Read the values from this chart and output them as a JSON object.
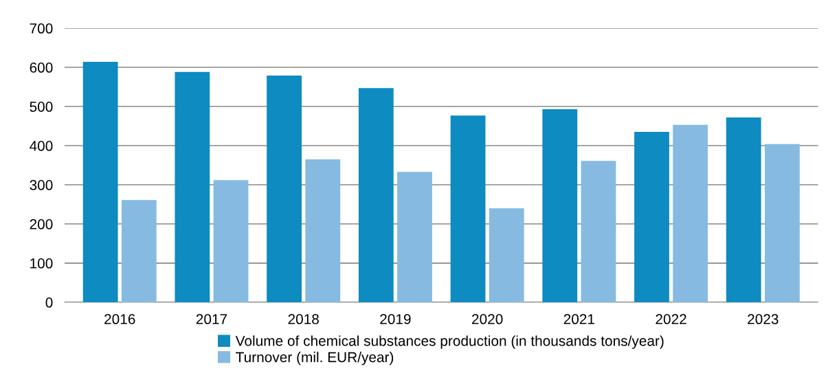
{
  "chart_data": {
    "type": "bar",
    "categories": [
      "2016",
      "2017",
      "2018",
      "2019",
      "2020",
      "2021",
      "2022",
      "2023"
    ],
    "series": [
      {
        "name": "Volume of chemical substances production (in thousands tons/year)",
        "color": "#0e8bc0",
        "values": [
          614,
          588,
          579,
          547,
          477,
          493,
          435,
          472
        ]
      },
      {
        "name": "Turnover (mil. EUR/year)",
        "color": "#86bae0",
        "values": [
          261,
          312,
          365,
          333,
          240,
          361,
          453,
          404
        ]
      }
    ],
    "ylim": [
      0,
      700
    ],
    "yticks": [
      0,
      100,
      200,
      300,
      400,
      500,
      600,
      700
    ],
    "grid": "y",
    "legend": "bottom"
  }
}
